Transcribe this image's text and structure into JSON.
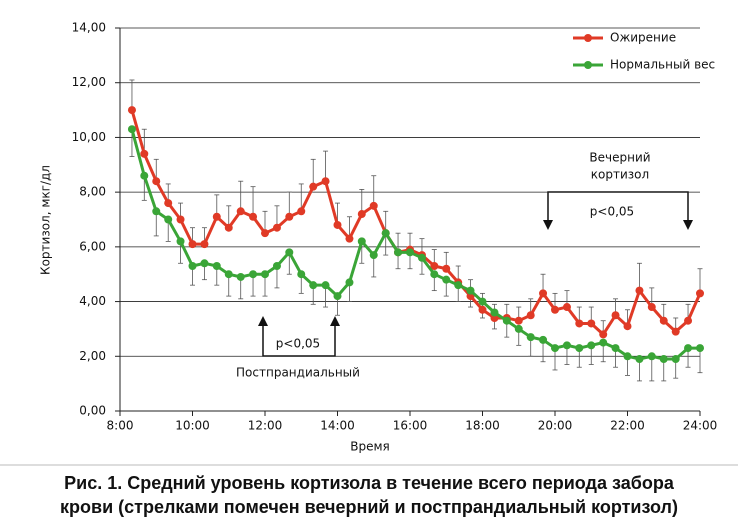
{
  "chart_data": {
    "type": "line",
    "caption": [
      "Рис. 1. Средний уровень кортизола в течение всего периода забора",
      "крови (стрелками помечен вечерний и постпрандиальный кортизол)"
    ],
    "y_label": "Кортизол, мкг/дл",
    "x_label": "Время",
    "annotations": {
      "evening_title": [
        "Вечерний",
        "кортизол"
      ],
      "evening_p": "p<0,05",
      "post_p": "p<0,05",
      "post_title": "Постпрандиальный"
    },
    "x": [
      8.33,
      8.67,
      9,
      9.33,
      9.67,
      10,
      10.33,
      10.67,
      11,
      11.33,
      11.67,
      12,
      12.33,
      12.67,
      13,
      13.33,
      13.67,
      14,
      14.33,
      14.67,
      15,
      15.33,
      15.67,
      16,
      16.33,
      16.67,
      17,
      17.33,
      17.67,
      18,
      18.33,
      18.67,
      19,
      19.33,
      19.67,
      20,
      20.33,
      20.67,
      21,
      21.33,
      21.67,
      22,
      22.33,
      22.67,
      23,
      23.33,
      23.67,
      24
    ],
    "series": [
      {
        "name": "Ожирение",
        "color": "#e03a26",
        "error_direction": "up",
        "values": [
          11.0,
          9.4,
          8.4,
          7.6,
          7.0,
          6.1,
          6.1,
          7.1,
          6.7,
          7.3,
          7.1,
          6.5,
          6.7,
          7.1,
          7.3,
          8.2,
          8.4,
          6.8,
          6.3,
          7.2,
          7.5,
          6.5,
          5.8,
          5.9,
          5.7,
          5.3,
          5.2,
          4.7,
          4.2,
          3.7,
          3.4,
          3.4,
          3.3,
          3.5,
          4.3,
          3.7,
          3.8,
          3.2,
          3.2,
          2.8,
          3.5,
          3.1,
          4.4,
          3.8,
          3.3,
          2.9,
          3.3,
          4.3
        ],
        "errors": [
          1.1,
          0.9,
          0.8,
          0.7,
          0.6,
          0.6,
          0.6,
          0.8,
          0.8,
          1.1,
          1.1,
          0.8,
          0.8,
          0.9,
          1.0,
          1.0,
          1.1,
          0.8,
          0.8,
          0.9,
          1.1,
          0.8,
          0.7,
          0.6,
          0.6,
          0.6,
          0.6,
          0.6,
          0.6,
          0.6,
          0.5,
          0.5,
          0.5,
          0.6,
          0.7,
          0.6,
          0.6,
          0.6,
          0.6,
          0.5,
          0.6,
          0.6,
          1.0,
          0.7,
          0.6,
          0.5,
          0.6,
          0.9
        ]
      },
      {
        "name": "Нормальный вес",
        "color": "#3aa537",
        "error_direction": "down",
        "values": [
          10.3,
          8.6,
          7.3,
          7.0,
          6.2,
          5.3,
          5.4,
          5.3,
          5.0,
          4.9,
          5.0,
          5.0,
          5.3,
          5.8,
          5.0,
          4.6,
          4.6,
          4.2,
          4.7,
          6.2,
          5.7,
          6.5,
          5.8,
          5.8,
          5.6,
          5.0,
          4.8,
          4.6,
          4.4,
          4.0,
          3.6,
          3.3,
          3.0,
          2.7,
          2.6,
          2.3,
          2.4,
          2.3,
          2.4,
          2.5,
          2.3,
          2.0,
          1.9,
          2.0,
          1.9,
          1.9,
          2.3,
          2.3
        ],
        "errors": [
          1.0,
          0.9,
          0.9,
          0.8,
          0.8,
          0.7,
          0.6,
          0.7,
          0.8,
          0.8,
          0.8,
          0.8,
          0.8,
          0.8,
          0.7,
          0.7,
          0.8,
          0.7,
          0.7,
          0.8,
          0.8,
          0.8,
          0.6,
          0.6,
          0.6,
          0.6,
          0.6,
          0.6,
          0.6,
          0.6,
          0.6,
          0.6,
          0.6,
          0.7,
          0.8,
          0.8,
          0.7,
          0.7,
          0.7,
          0.7,
          0.7,
          0.7,
          0.8,
          0.9,
          0.8,
          0.7,
          0.7,
          0.9
        ]
      }
    ],
    "xlim": [
      8,
      24
    ],
    "xticks": [
      {
        "value": 8,
        "label": "8:00"
      },
      {
        "value": 10,
        "label": "10:00"
      },
      {
        "value": 12,
        "label": "12:00"
      },
      {
        "value": 14,
        "label": "14:00"
      },
      {
        "value": 16,
        "label": "16:00"
      },
      {
        "value": 18,
        "label": "18:00"
      },
      {
        "value": 20,
        "label": "20:00"
      },
      {
        "value": 22,
        "label": "22:00"
      },
      {
        "value": 24,
        "label": "24:00"
      }
    ],
    "ylim": [
      0,
      14
    ],
    "yticks": [
      {
        "value": 0,
        "label": "0,00"
      },
      {
        "value": 2,
        "label": "2,00"
      },
      {
        "value": 4,
        "label": "4,00"
      },
      {
        "value": 6,
        "label": "6,00"
      },
      {
        "value": 8,
        "label": "8,00"
      },
      {
        "value": 10,
        "label": "10,00"
      },
      {
        "value": 12,
        "label": "12,00"
      },
      {
        "value": 14,
        "label": "14,00"
      }
    ],
    "grid": true,
    "legend": "upper right"
  }
}
